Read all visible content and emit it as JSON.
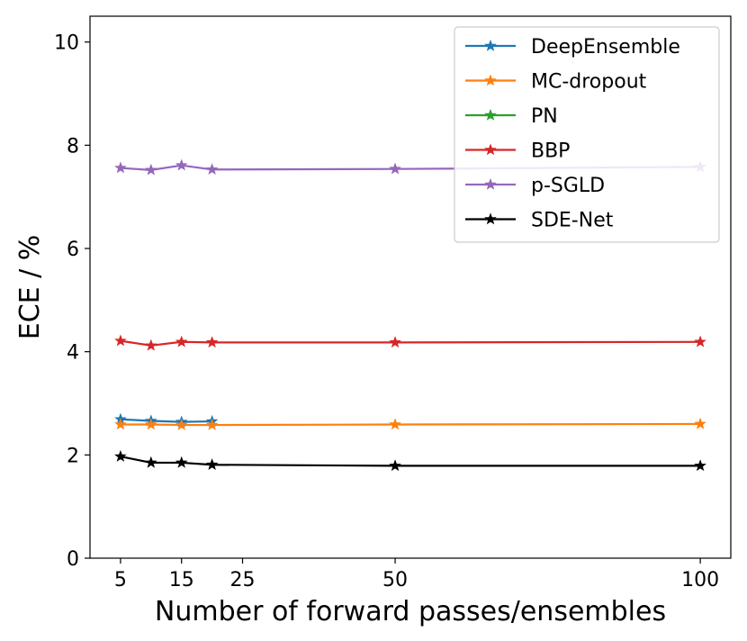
{
  "chart_data": {
    "type": "line",
    "title": "",
    "xlabel": "Number of forward passes/ensembles",
    "ylabel": "ECE / %",
    "xlim": [
      0,
      105
    ],
    "ylim": [
      0,
      10.5
    ],
    "xticks": [
      5,
      15,
      25,
      50,
      100
    ],
    "yticks": [
      0,
      2,
      4,
      6,
      8,
      10
    ],
    "legend_position": "top-right",
    "marker": "star",
    "series": [
      {
        "name": "DeepEnsemble",
        "color": "#1f77b4",
        "x": [
          5,
          10,
          15,
          20
        ],
        "y": [
          2.69,
          2.66,
          2.64,
          2.65
        ]
      },
      {
        "name": "MC-dropout",
        "color": "#ff7f0e",
        "x": [
          5,
          10,
          15,
          20,
          50,
          100
        ],
        "y": [
          2.59,
          2.59,
          2.58,
          2.58,
          2.59,
          2.6
        ]
      },
      {
        "name": "PN",
        "color": "#2ca02c",
        "x": [],
        "y": []
      },
      {
        "name": "BBP",
        "color": "#d62728",
        "x": [
          5,
          10,
          15,
          20,
          50,
          100
        ],
        "y": [
          4.21,
          4.12,
          4.19,
          4.18,
          4.18,
          4.19
        ]
      },
      {
        "name": "p-SGLD",
        "color": "#9467bd",
        "x": [
          5,
          10,
          15,
          20,
          50,
          100
        ],
        "y": [
          7.56,
          7.52,
          7.61,
          7.53,
          7.54,
          7.58
        ]
      },
      {
        "name": "SDE-Net",
        "color": "#000000",
        "x": [
          5,
          10,
          15,
          20,
          50,
          100
        ],
        "y": [
          1.97,
          1.85,
          1.85,
          1.81,
          1.79,
          1.79
        ]
      }
    ]
  }
}
